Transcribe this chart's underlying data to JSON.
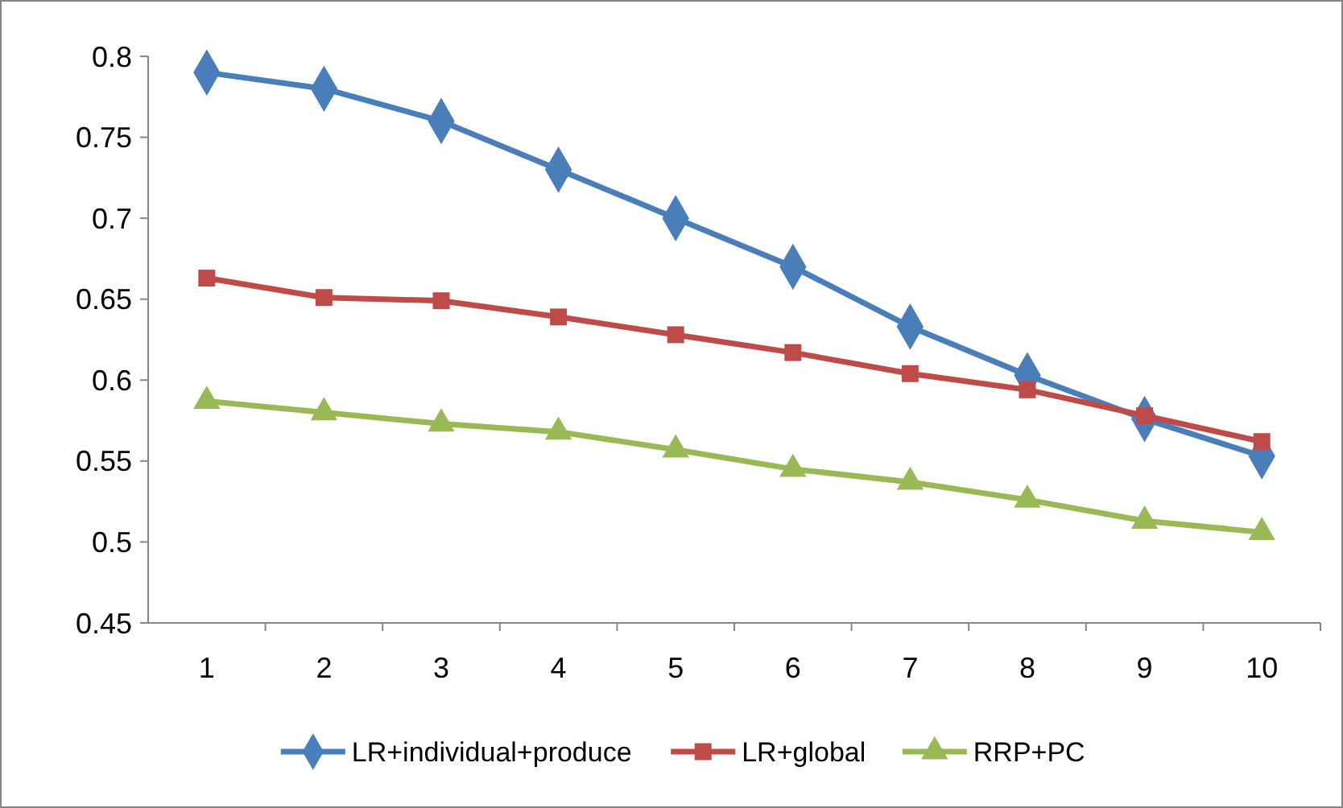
{
  "chart_data": {
    "type": "line",
    "categories": [
      "1",
      "2",
      "3",
      "4",
      "5",
      "6",
      "7",
      "8",
      "9",
      "10"
    ],
    "ylim": [
      0.45,
      0.8
    ],
    "yticks": [
      0.45,
      0.5,
      0.55,
      0.6,
      0.65,
      0.7,
      0.75,
      0.8
    ],
    "grid": false,
    "legend": "bottom",
    "line_style": "solid",
    "series": [
      {
        "name": "LR+individual+produce",
        "color": "#4a7ebb",
        "marker": "diamond",
        "values": [
          0.79,
          0.78,
          0.76,
          0.73,
          0.7,
          0.67,
          0.633,
          0.603,
          0.576,
          0.553
        ]
      },
      {
        "name": "LR+global",
        "color": "#be4b48",
        "marker": "square",
        "values": [
          0.663,
          0.651,
          0.649,
          0.639,
          0.628,
          0.617,
          0.604,
          0.594,
          0.578,
          0.562
        ]
      },
      {
        "name": "RRP+PC",
        "color": "#98b954",
        "marker": "triangle",
        "values": [
          0.587,
          0.58,
          0.573,
          0.568,
          0.557,
          0.545,
          0.537,
          0.526,
          0.513,
          0.506
        ]
      }
    ]
  }
}
